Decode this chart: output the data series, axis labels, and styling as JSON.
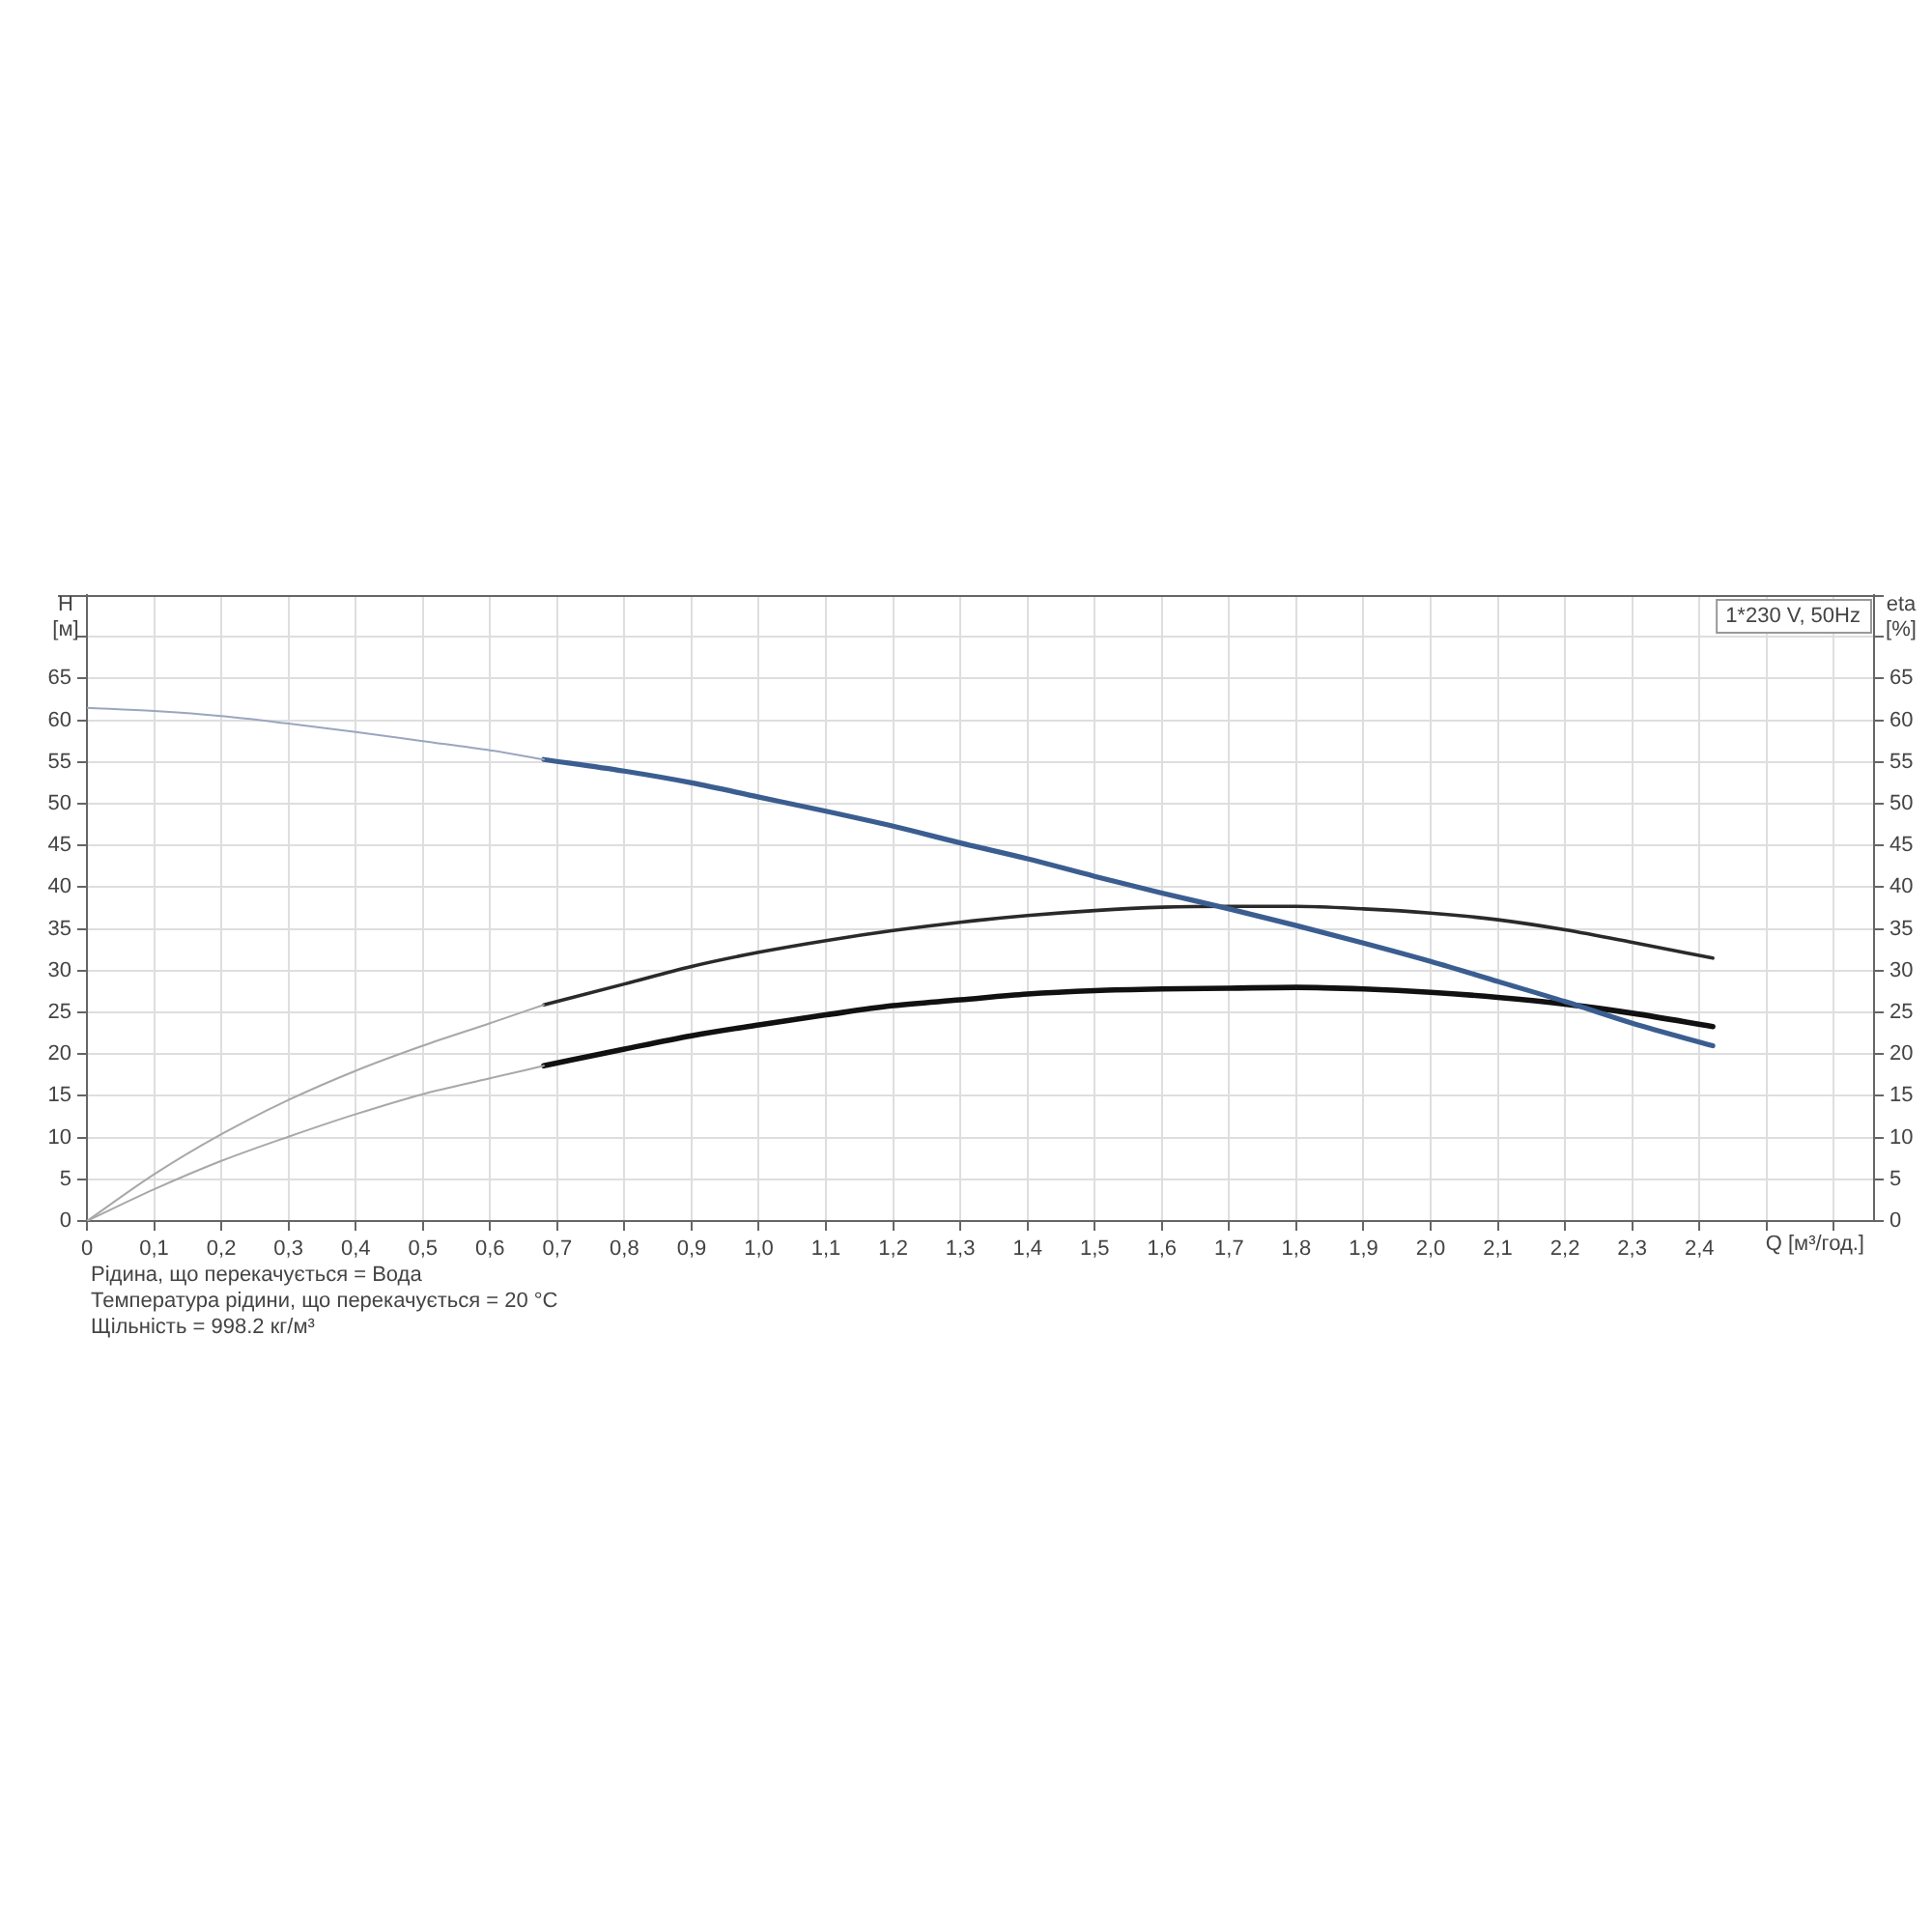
{
  "chart_data": {
    "type": "line",
    "ylabel": "H [м]",
    "y2label": "eta [%]",
    "xlabel": "Q [м³/год.]",
    "annotations": [
      "1*230 V, 50Hz",
      "Рідина, що перекачується = Вода",
      "Температура рідини, що перекачується = 20 °C",
      "Щільність = 998.2 кг/м³"
    ],
    "xlim": [
      0,
      2.66
    ],
    "xticks": [
      0,
      {
        "value": 0.1,
        "label": "0,1"
      },
      {
        "value": 0.2,
        "label": "0,2"
      },
      {
        "value": 0.3,
        "label": "0,3"
      },
      {
        "value": 0.4,
        "label": "0,4"
      },
      {
        "value": 0.5,
        "label": "0,5"
      },
      {
        "value": 0.6,
        "label": "0,6"
      },
      {
        "value": 0.7,
        "label": "0,7"
      },
      {
        "value": 0.8,
        "label": "0,8"
      },
      {
        "value": 0.9,
        "label": "0,9"
      },
      {
        "value": 1.0,
        "label": "1,0"
      },
      {
        "value": 1.1,
        "label": "1,1"
      },
      {
        "value": 1.2,
        "label": "1,2"
      },
      {
        "value": 1.3,
        "label": "1,3"
      },
      {
        "value": 1.4,
        "label": "1,4"
      },
      {
        "value": 1.5,
        "label": "1,5"
      },
      {
        "value": 1.6,
        "label": "1,6"
      },
      {
        "value": 1.7,
        "label": "1,7"
      },
      {
        "value": 1.8,
        "label": "1,8"
      },
      {
        "value": 1.9,
        "label": "1,9"
      },
      {
        "value": 2.0,
        "label": "2,0"
      },
      {
        "value": 2.1,
        "label": "2,1"
      },
      {
        "value": 2.2,
        "label": "2,2"
      },
      {
        "value": 2.3,
        "label": "2,3"
      },
      {
        "value": 2.4,
        "label": "2,4"
      },
      {
        "value": 2.5,
        "label": null
      },
      {
        "value": 2.6,
        "label": null
      }
    ],
    "ylim": [
      0,
      75
    ],
    "yticks": [
      0,
      5,
      10,
      15,
      20,
      25,
      30,
      35,
      40,
      45,
      50,
      55,
      60,
      65,
      {
        "value": 70,
        "label": null
      }
    ],
    "y2lim": [
      0,
      75
    ],
    "y2ticks": [
      0,
      5,
      10,
      15,
      20,
      25,
      30,
      35,
      40,
      45,
      50,
      55,
      60,
      65,
      {
        "value": 70,
        "label": null
      }
    ],
    "grid": true,
    "series": [
      {
        "color": "#9ba6bf",
        "x": [
          0,
          0.1,
          0.2,
          0.3,
          0.4,
          0.5,
          0.6,
          0.68
        ],
        "values": [
          61.5,
          61.1,
          60.5,
          59.6,
          58.6,
          57.5,
          56.4,
          55.3
        ]
      },
      {
        "color": "#3b5e91",
        "x": [
          0.68,
          0.8,
          0.9,
          1.0,
          1.1,
          1.2,
          1.3,
          1.4,
          1.5,
          1.6,
          1.7,
          1.8,
          1.9,
          2.0,
          2.1,
          2.2,
          2.3,
          2.42
        ],
        "values": [
          55.3,
          53.9,
          52.5,
          50.8,
          49.1,
          47.3,
          45.3,
          43.4,
          41.3,
          39.3,
          37.4,
          35.4,
          33.3,
          31.1,
          28.7,
          26.3,
          23.7,
          21.0
        ]
      },
      {
        "color": "#a8a8a8",
        "x": [
          0,
          0.1,
          0.2,
          0.3,
          0.4,
          0.5,
          0.6,
          0.68
        ],
        "values": [
          0,
          5.6,
          10.4,
          14.5,
          18.0,
          21.0,
          23.7,
          25.9
        ]
      },
      {
        "color": "#2a2a2a",
        "x": [
          0.68,
          0.8,
          0.9,
          1.0,
          1.1,
          1.2,
          1.3,
          1.4,
          1.5,
          1.6,
          1.7,
          1.8,
          1.9,
          2.0,
          2.1,
          2.2,
          2.3,
          2.42
        ],
        "values": [
          25.9,
          28.4,
          30.5,
          32.2,
          33.6,
          34.8,
          35.8,
          36.6,
          37.2,
          37.6,
          37.7,
          37.7,
          37.4,
          36.9,
          36.1,
          34.9,
          33.4,
          31.5
        ]
      },
      {
        "color": "#a8a8a8",
        "x": [
          0,
          0.1,
          0.2,
          0.3,
          0.4,
          0.5,
          0.6,
          0.68
        ],
        "values": [
          0,
          3.8,
          7.2,
          10.1,
          12.8,
          15.2,
          17.1,
          18.6
        ]
      },
      {
        "color": "#111111",
        "x": [
          0.68,
          0.8,
          0.9,
          1.0,
          1.1,
          1.2,
          1.3,
          1.4,
          1.5,
          1.6,
          1.7,
          1.8,
          1.9,
          2.0,
          2.1,
          2.2,
          2.3,
          2.42
        ],
        "values": [
          18.6,
          20.6,
          22.2,
          23.5,
          24.7,
          25.8,
          26.5,
          27.2,
          27.6,
          27.8,
          27.9,
          28.0,
          27.8,
          27.4,
          26.8,
          26.0,
          24.9,
          23.3
        ]
      }
    ]
  }
}
